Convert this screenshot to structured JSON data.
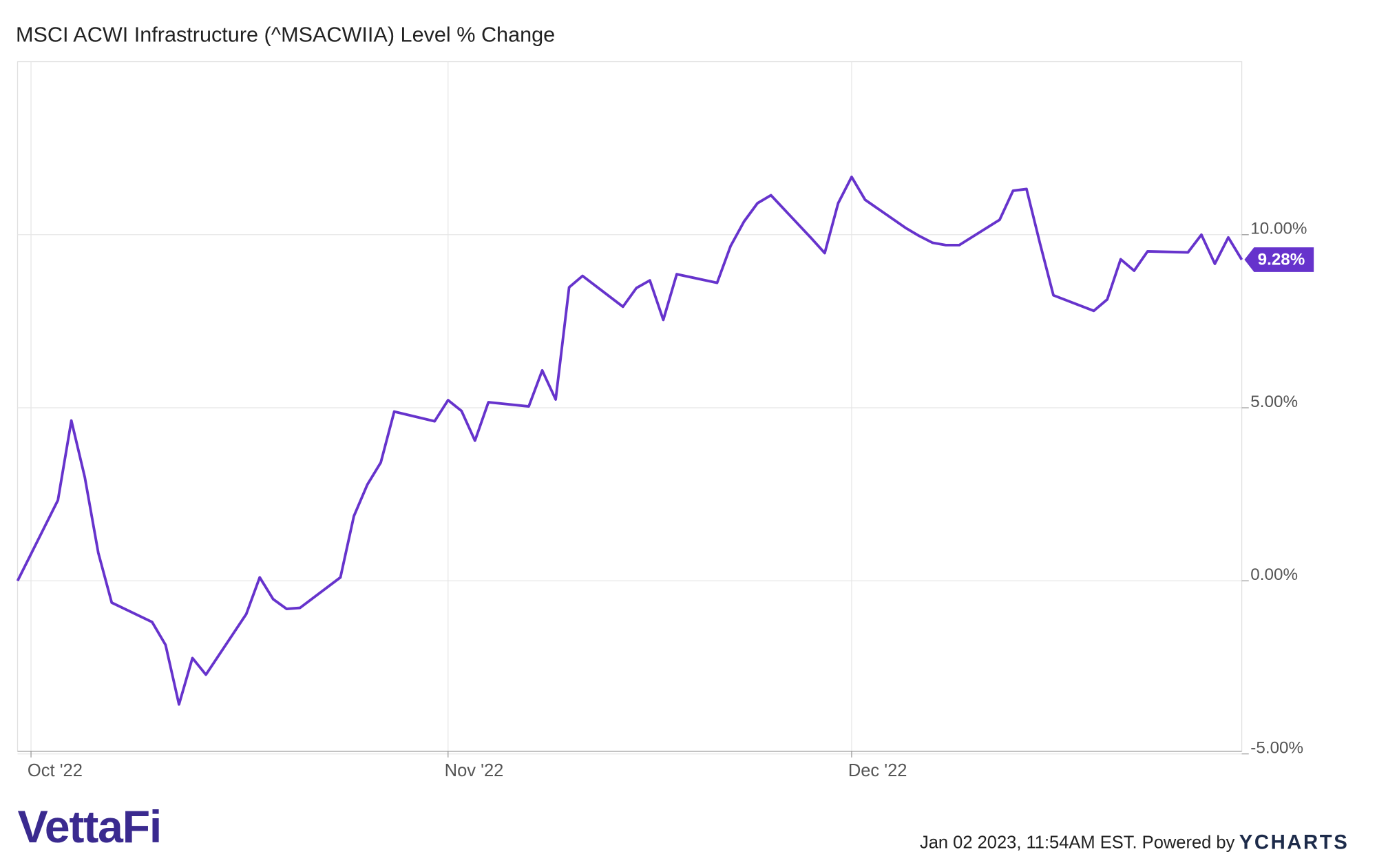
{
  "chart_data": {
    "type": "line",
    "title": "MSCI ACWI Infrastructure (^MSACWIIA) Level % Change",
    "x": [
      0,
      3,
      4,
      5,
      6,
      7,
      10,
      11,
      12,
      13,
      14,
      17,
      18,
      19,
      20,
      21,
      24,
      25,
      26,
      27,
      28,
      31,
      32,
      33,
      34,
      35,
      38,
      39,
      40,
      41,
      42,
      45,
      46,
      47,
      48,
      49,
      52,
      53,
      54,
      55,
      56,
      59,
      60,
      61,
      62,
      63,
      66,
      67,
      68,
      69,
      70,
      73,
      74,
      75,
      76,
      77,
      80,
      81,
      82,
      83,
      84,
      87,
      88,
      89,
      90,
      91
    ],
    "values": [
      0,
      2.33,
      4.63,
      2.99,
      0.81,
      -0.63,
      -1.19,
      -1.85,
      -3.57,
      -2.23,
      -2.71,
      -0.96,
      0.1,
      -0.53,
      -0.81,
      -0.78,
      0.1,
      1.87,
      2.78,
      3.42,
      4.89,
      4.61,
      5.22,
      4.91,
      4.05,
      5.16,
      5.04,
      6.08,
      5.24,
      8.48,
      8.81,
      7.92,
      8.46,
      8.68,
      7.54,
      8.86,
      8.61,
      9.67,
      10.38,
      10.91,
      11.14,
      9.9,
      9.47,
      10.91,
      11.67,
      11.01,
      10.2,
      9.97,
      9.77,
      9.7,
      9.7,
      10.43,
      11.27,
      11.32,
      9.75,
      8.25,
      7.8,
      8.13,
      9.29,
      8.96,
      9.52,
      9.49,
      10.0,
      9.16,
      9.92,
      9.28
    ],
    "value_labels": [
      null,
      null,
      null,
      null,
      null,
      null,
      null,
      null,
      null,
      null,
      null,
      null,
      null,
      null,
      null,
      null,
      null,
      null,
      null,
      null,
      null,
      null,
      null,
      null,
      null,
      null,
      null,
      null,
      null,
      null,
      null,
      null,
      null,
      null,
      null,
      null,
      null,
      null,
      null,
      null,
      null,
      null,
      null,
      null,
      null,
      null,
      null,
      null,
      null,
      null,
      null,
      null,
      null,
      null,
      null,
      null,
      null,
      null,
      null,
      null,
      null,
      null,
      null,
      null,
      null,
      "9.28%"
    ],
    "color": "#6633cc",
    "xlim": [
      0,
      91
    ],
    "xticks": [
      {
        "value": 1,
        "label": "Oct '22"
      },
      {
        "value": 32,
        "label": "Nov '22"
      },
      {
        "value": 62,
        "label": "Dec '22"
      }
    ],
    "ylim": [
      -5,
      15
    ],
    "yticks": [
      {
        "value": -5,
        "label": "-5.00%"
      },
      {
        "value": 0,
        "label": "0.00%"
      },
      {
        "value": 5,
        "label": "5.00%"
      },
      {
        "value": 10,
        "label": "10.00%"
      }
    ],
    "grid": true
  },
  "footer": {
    "logo": "VettaFi",
    "timestamp": "Jan 02 2023, 11:54AM EST. Powered by",
    "brand": "YCHARTS"
  }
}
